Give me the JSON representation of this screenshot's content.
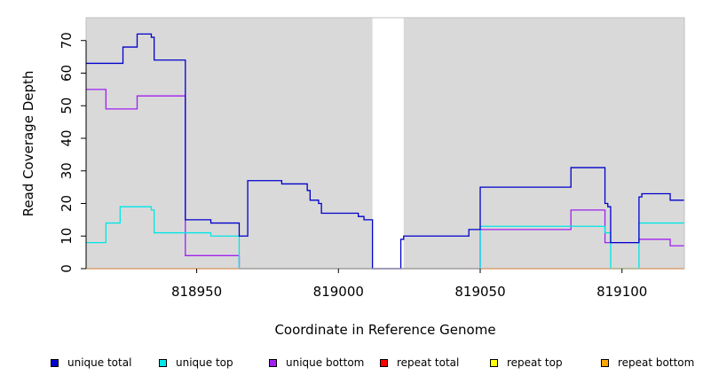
{
  "chart_data": {
    "type": "line",
    "title": "",
    "xlabel": "Coordinate in Reference Genome",
    "ylabel": "Read Coverage Depth",
    "xlim": [
      818911,
      819122
    ],
    "ylim": [
      0,
      77
    ],
    "x_ticks": [
      818950,
      819000,
      819050,
      819100
    ],
    "x_tick_labels": [
      "818950",
      "819000",
      "819050",
      "819100"
    ],
    "y_ticks": [
      0,
      10,
      20,
      30,
      40,
      50,
      60,
      70
    ],
    "y_tick_labels": [
      "0",
      "10",
      "20",
      "30",
      "40",
      "50",
      "60",
      "70"
    ],
    "gap_region": [
      819012,
      819023
    ],
    "background_color": "#d9d9d9",
    "grid": false,
    "legend_position": "bottom",
    "series": [
      {
        "name": "unique total",
        "color": "#0000cc",
        "steps": [
          [
            818911,
            63
          ],
          [
            818924,
            68
          ],
          [
            818929,
            72
          ],
          [
            818934,
            71
          ],
          [
            818935,
            64
          ],
          [
            818946,
            15
          ],
          [
            818955,
            14
          ],
          [
            818965,
            10
          ],
          [
            818968,
            27
          ],
          [
            818980,
            26
          ],
          [
            818989,
            24
          ],
          [
            818990,
            21
          ],
          [
            818993,
            20
          ],
          [
            818994,
            17
          ],
          [
            819007,
            16
          ],
          [
            819009,
            15
          ],
          [
            819012,
            0
          ],
          [
            819022,
            9
          ],
          [
            819023,
            10
          ],
          [
            819046,
            12
          ],
          [
            819050,
            25
          ],
          [
            819082,
            31
          ],
          [
            819094,
            20
          ],
          [
            819095,
            19
          ],
          [
            819096,
            8
          ],
          [
            819106,
            22
          ],
          [
            819107,
            23
          ],
          [
            819117,
            21
          ],
          [
            819122,
            21
          ]
        ]
      },
      {
        "name": "unique top",
        "color": "#00e6e6",
        "steps": [
          [
            818911,
            8
          ],
          [
            818918,
            14
          ],
          [
            818923,
            19
          ],
          [
            818934,
            18
          ],
          [
            818935,
            11
          ],
          [
            818955,
            10
          ],
          [
            818965,
            0
          ],
          [
            819050,
            13
          ],
          [
            819094,
            11
          ],
          [
            819096,
            0
          ],
          [
            819106,
            14
          ],
          [
            819122,
            14
          ]
        ]
      },
      {
        "name": "unique bottom",
        "color": "#a020f0",
        "steps": [
          [
            818911,
            55
          ],
          [
            818918,
            49
          ],
          [
            818929,
            53
          ],
          [
            818946,
            4
          ],
          [
            818965,
            0
          ],
          [
            819050,
            12
          ],
          [
            819082,
            18
          ],
          [
            819094,
            8
          ],
          [
            819106,
            9
          ],
          [
            819117,
            7
          ],
          [
            819122,
            7
          ]
        ]
      },
      {
        "name": "repeat total",
        "color": "#ff0000",
        "steps": [
          [
            818911,
            0
          ],
          [
            819122,
            0
          ]
        ]
      },
      {
        "name": "repeat top",
        "color": "#ffff00",
        "steps": [
          [
            818911,
            0
          ],
          [
            819122,
            0
          ]
        ]
      },
      {
        "name": "repeat bottom",
        "color": "#ffa500",
        "steps": [
          [
            818911,
            0
          ],
          [
            819122,
            0
          ]
        ]
      }
    ]
  }
}
